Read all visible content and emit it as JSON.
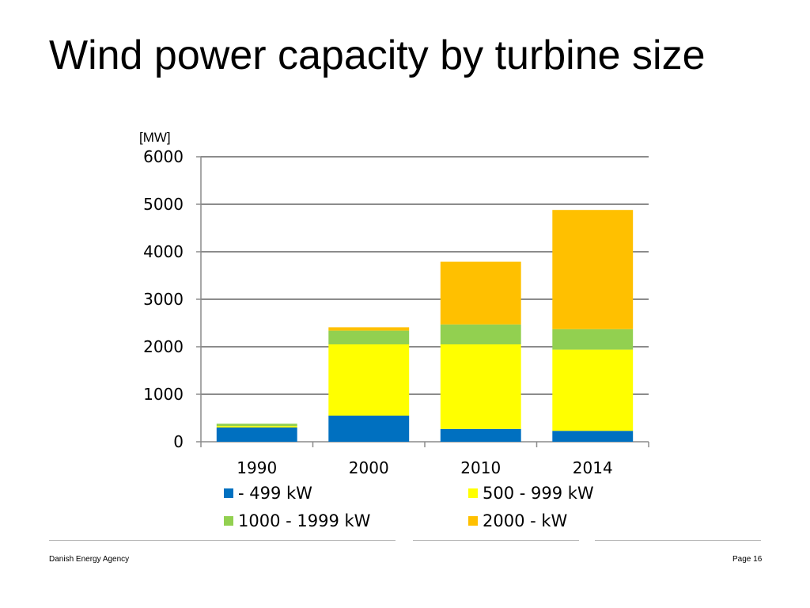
{
  "slide": {
    "title": "Wind power capacity by turbine size",
    "footer_left": "Danish Energy Agency",
    "page": "Page 16"
  },
  "chart_data": {
    "type": "bar",
    "stacked": true,
    "unit_label": "[MW]",
    "categories": [
      "1990",
      "2000",
      "2010",
      "2014"
    ],
    "ylim": [
      0,
      6000
    ],
    "yticks": [
      0,
      1000,
      2000,
      3000,
      4000,
      5000,
      6000
    ],
    "grid": true,
    "legend_position": "bottom",
    "series": [
      {
        "name": "- 499 kW",
        "color": "#0070c0",
        "values": [
          300,
          550,
          270,
          230
        ]
      },
      {
        "name": "500 - 999 kW",
        "color": "#ffff00",
        "values": [
          30,
          1500,
          1780,
          1710
        ]
      },
      {
        "name": "1000 - 1999 kW",
        "color": "#92d050",
        "values": [
          50,
          290,
          420,
          430
        ]
      },
      {
        "name": "2000 - kW",
        "color": "#ffc000",
        "values": [
          0,
          70,
          1320,
          2510
        ]
      }
    ]
  }
}
